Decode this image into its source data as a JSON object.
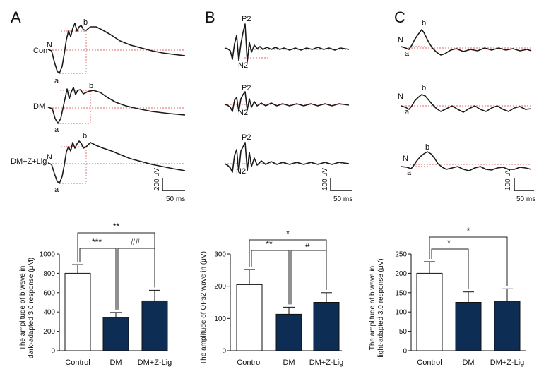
{
  "panels": [
    "A",
    "B",
    "C"
  ],
  "waveform_labels": {
    "group_a": [
      "Con",
      "DM",
      "DM+Z+Lig"
    ],
    "peaks": {
      "n": "N",
      "a": "a",
      "b": "b",
      "p2": "P2",
      "n2": "N2"
    }
  },
  "scale_bars": [
    {
      "amplitude": "200 μV",
      "time": "50 ms"
    },
    {
      "amplitude": "100 μV",
      "time": "50 ms"
    },
    {
      "amplitude": "100 μV",
      "time": "50 ms"
    }
  ],
  "chart_data": [
    {
      "type": "bar",
      "title": "",
      "xlabel": "",
      "ylabel": "The amplitude of b wave in dark-adapted 3.0 response (μM)",
      "ylabel_lines": [
        "The amplitude of b wave in",
        "dark-adapted 3.0 response (μM)"
      ],
      "categories": [
        "Control",
        "DM",
        "DM+Z-Lig"
      ],
      "values": [
        800,
        345,
        515
      ],
      "errors": [
        90,
        50,
        110
      ],
      "ylim": [
        0,
        1000
      ],
      "yticks": [
        0,
        200,
        400,
        600,
        800,
        1000
      ],
      "colors": [
        "#ffffff",
        "#0d2d55",
        "#0d2d55"
      ],
      "significance": [
        {
          "from": 0,
          "to": 2,
          "label": "**"
        },
        {
          "from": 0,
          "to": 1,
          "label": "***"
        },
        {
          "from": 1,
          "to": 2,
          "label": "##"
        }
      ]
    },
    {
      "type": "bar",
      "title": "",
      "xlabel": "",
      "ylabel": "The amplitude of OPs2 wave in (μV)",
      "ylabel_lines": [
        "The amplitude of OPs2 wave in (μV)"
      ],
      "categories": [
        "Control",
        "DM",
        "DM+Z-Lig"
      ],
      "values": [
        205,
        113,
        150
      ],
      "errors": [
        47,
        22,
        30
      ],
      "ylim": [
        0,
        300
      ],
      "yticks": [
        0,
        100,
        200,
        300
      ],
      "colors": [
        "#ffffff",
        "#0d2d55",
        "#0d2d55"
      ],
      "significance": [
        {
          "from": 0,
          "to": 2,
          "label": "*"
        },
        {
          "from": 0,
          "to": 1,
          "label": "**"
        },
        {
          "from": 1,
          "to": 2,
          "label": "#"
        }
      ]
    },
    {
      "type": "bar",
      "title": "",
      "xlabel": "",
      "ylabel": "The amplitude of b wave in light-adapted 3.0 response (μV)",
      "ylabel_lines": [
        "The amplitude of b wave in",
        "light-adapted 3.0 response (μV)"
      ],
      "categories": [
        "Control",
        "DM",
        "DM+Z-Lig"
      ],
      "values": [
        200,
        125,
        128
      ],
      "errors": [
        30,
        27,
        32
      ],
      "ylim": [
        0,
        250
      ],
      "yticks": [
        0,
        50,
        100,
        150,
        200,
        250
      ],
      "colors": [
        "#ffffff",
        "#0d2d55",
        "#0d2d55"
      ],
      "significance": [
        {
          "from": 0,
          "to": 2,
          "label": "*"
        },
        {
          "from": 0,
          "to": 1,
          "label": "*"
        }
      ]
    }
  ]
}
